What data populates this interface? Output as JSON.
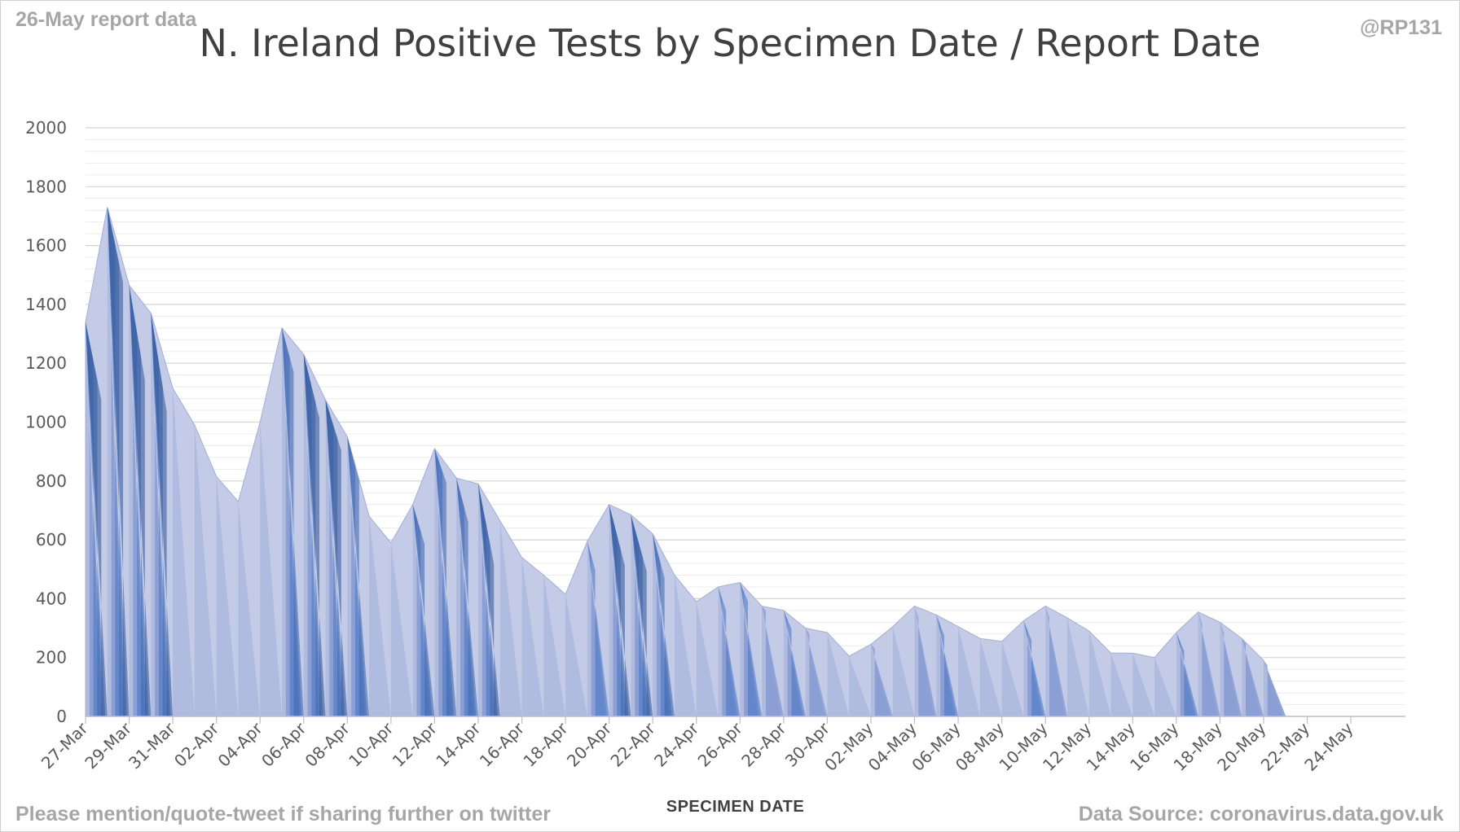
{
  "header": {
    "report_label": "26-May report data",
    "handle": "@RP131",
    "title": "N. Ireland Positive Tests by Specimen Date / Report Date"
  },
  "footer": {
    "share_note": "Please mention/quote-tweet if sharing further on twitter",
    "source": "Data Source: coronavirus.data.gov.uk"
  },
  "chart_data": {
    "type": "area",
    "title": "N. Ireland Positive Tests by Specimen Date / Report Date",
    "xlabel": "SPECIMEN DATE",
    "ylabel": "",
    "ylim": [
      0,
      2000
    ],
    "yticks": [
      0,
      200,
      400,
      600,
      800,
      1000,
      1200,
      1400,
      1600,
      1800,
      2000
    ],
    "x_tick_labels": [
      "27-Mar",
      "29-Mar",
      "31-Mar",
      "02-Apr",
      "04-Apr",
      "06-Apr",
      "08-Apr",
      "10-Apr",
      "12-Apr",
      "14-Apr",
      "16-Apr",
      "18-Apr",
      "20-Apr",
      "22-Apr",
      "24-Apr",
      "26-Apr",
      "28-Apr",
      "30-Apr",
      "02-May",
      "04-May",
      "06-May",
      "08-May",
      "10-May",
      "12-May",
      "14-May",
      "16-May",
      "18-May",
      "20-May",
      "22-May",
      "24-May"
    ],
    "grid": "horizontal",
    "legend": "none",
    "stacking": "overlapping areas, one per report date; later reports add to earlier specimen dates",
    "colors": [
      "#c3cbe6",
      "#a1afdb",
      "#7089cc",
      "#4472c4",
      "#3b64ad",
      "#2f5597"
    ],
    "values": [
      1340,
      1730,
      1465,
      1370,
      1115,
      990,
      815,
      730,
      1000,
      1320,
      1230,
      1075,
      950,
      680,
      590,
      720,
      910,
      810,
      790,
      665,
      540,
      480,
      415,
      595,
      720,
      685,
      620,
      480,
      390,
      440,
      455,
      375,
      360,
      300,
      285,
      205,
      245,
      305,
      375,
      345,
      305,
      265,
      255,
      325,
      375,
      335,
      290,
      215,
      215,
      200,
      285,
      355,
      320,
      265,
      190,
      0,
      0,
      0,
      0,
      0
    ],
    "initial_values": [
      1010,
      1410,
      1060,
      950,
      1115,
      990,
      815,
      730,
      1000,
      1120,
      960,
      860,
      750,
      680,
      590,
      540,
      755,
      610,
      450,
      665,
      540,
      480,
      415,
      450,
      460,
      445,
      420,
      480,
      390,
      320,
      360,
      345,
      265,
      260,
      285,
      205,
      215,
      305,
      290,
      240,
      305,
      265,
      255,
      225,
      295,
      335,
      290,
      215,
      215,
      200,
      190,
      275,
      250,
      230,
      160,
      0,
      0,
      0,
      0,
      0
    ]
  }
}
